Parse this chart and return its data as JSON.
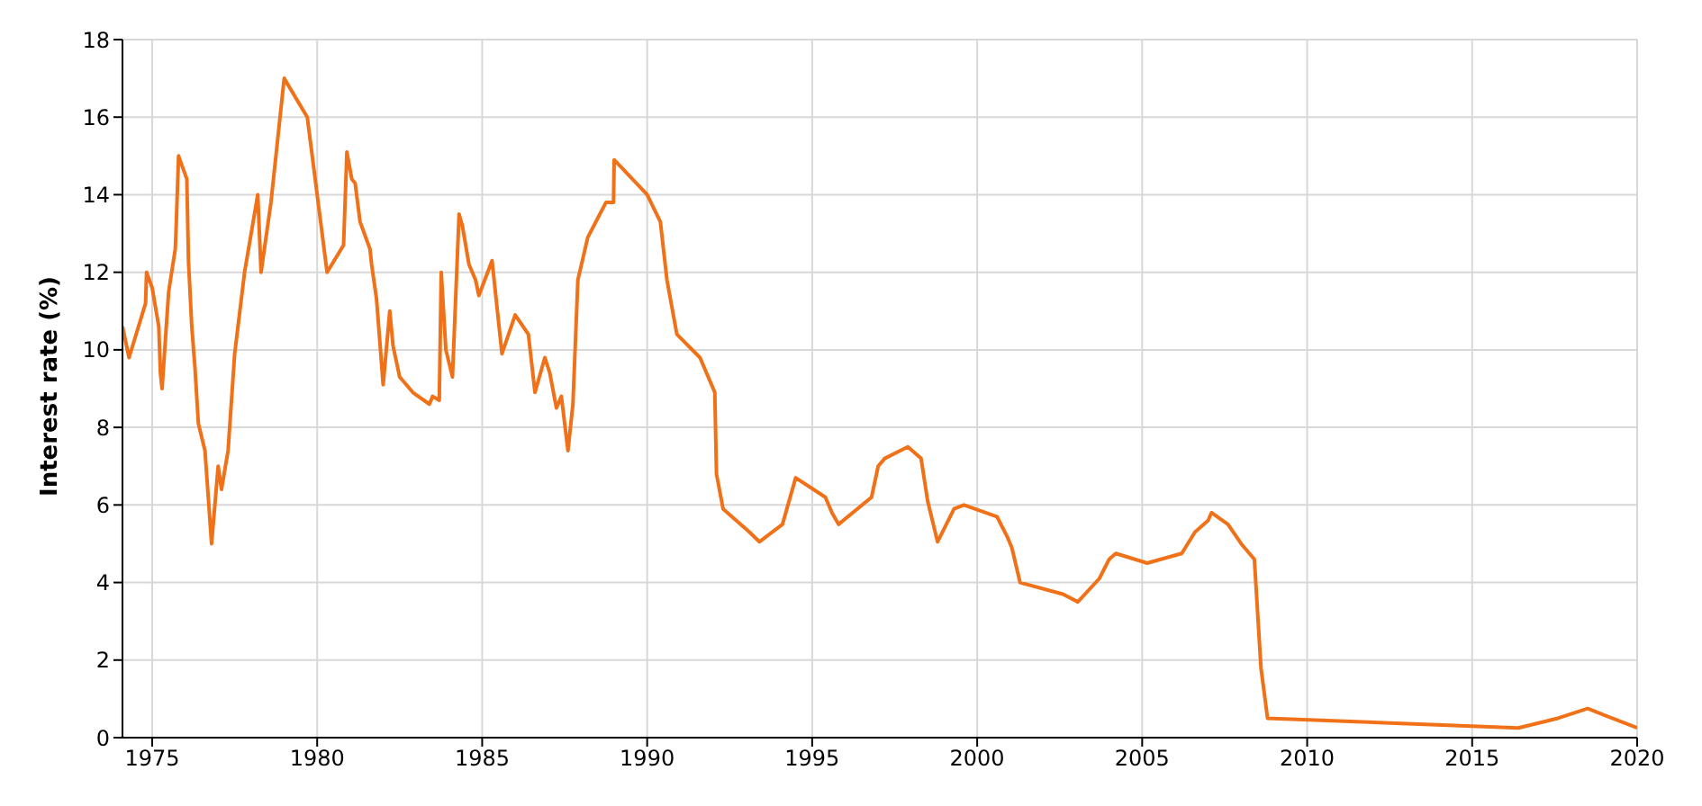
{
  "chart_data": {
    "type": "line",
    "ylabel": "Interest rate (%)",
    "x": [
      1974.1,
      1974.3,
      1974.8,
      1974.83,
      1975,
      1975.2,
      1975.25,
      1975.3,
      1975.5,
      1975.7,
      1975.72,
      1975.8,
      1976.05,
      1976.1,
      1976.2,
      1976.3,
      1976.4,
      1976.6,
      1976.8,
      1977.0,
      1977.1,
      1977.3,
      1977.5,
      1977.8,
      1978.2,
      1978.3,
      1978.6,
      1979.0,
      1979.7,
      1980.3,
      1980.8,
      1980.9,
      1981.05,
      1981.15,
      1981.3,
      1981.6,
      1981.65,
      1981.8,
      1982.0,
      1982.2,
      1982.3,
      1982.5,
      1982.9,
      1983.4,
      1983.5,
      1983.7,
      1983.76,
      1983.9,
      1984.1,
      1984.3,
      1984.4,
      1984.6,
      1984.8,
      1984.9,
      1985.3,
      1985.6,
      1986.0,
      1986.4,
      1986.6,
      1986.9,
      1987.05,
      1987.25,
      1987.4,
      1987.6,
      1987.75,
      1987.9,
      1988.2,
      1988.75,
      1988.98,
      1989.0,
      1990.0,
      1990.4,
      1990.6,
      1990.9,
      1991.6,
      1992.05,
      1992.1,
      1992.3,
      1993.1,
      1993.4,
      1994.1,
      1994.5,
      1995.4,
      1995.6,
      1995.8,
      1996.8,
      1997.0,
      1997.2,
      1997.9,
      1998.3,
      1998.5,
      1998.8,
      1999.3,
      1999.6,
      2000.6,
      2000.9,
      2001.05,
      2001.3,
      2002.6,
      2003.05,
      2003.7,
      2004.0,
      2004.2,
      2005.15,
      2006.2,
      2006.6,
      2007.0,
      2007.1,
      2007.6,
      2008.0,
      2008.4,
      2008.6,
      2008.8,
      2016.4,
      2017.6,
      2018.5,
      2020.0
    ],
    "series": [
      {
        "color": "#f07117",
        "values": [
          10.6,
          9.8,
          11.2,
          12,
          11.6,
          10.6,
          9.4,
          9.0,
          11.5,
          12.6,
          13,
          15,
          14.4,
          12.3,
          10.6,
          9.5,
          8.1,
          7.4,
          5.0,
          7.0,
          6.4,
          7.4,
          9.9,
          12,
          14,
          12,
          13.8,
          17,
          16,
          12,
          12.7,
          15.1,
          14.4,
          14.3,
          13.3,
          12.6,
          12.2,
          11.3,
          9.1,
          11.0,
          10.1,
          9.3,
          8.9,
          8.6,
          8.8,
          8.7,
          12,
          10,
          9.3,
          13.5,
          13.2,
          12.2,
          11.8,
          11.4,
          12.3,
          9.9,
          10.9,
          10.4,
          8.9,
          9.8,
          9.4,
          8.5,
          8.8,
          7.4,
          8.6,
          11.8,
          12.9,
          13.8,
          13.8,
          14.9,
          14,
          13.3,
          11.8,
          10.4,
          9.8,
          8.9,
          6.8,
          5.9,
          5.3,
          5.05,
          5.5,
          6.7,
          6.2,
          5.8,
          5.5,
          6.2,
          7.0,
          7.2,
          7.5,
          7.2,
          6.1,
          5.05,
          5.9,
          6.0,
          5.7,
          5.2,
          4.9,
          4.0,
          3.7,
          3.5,
          4.1,
          4.6,
          4.75,
          4.5,
          4.75,
          5.3,
          5.6,
          5.8,
          5.5,
          5.0,
          4.6,
          1.8,
          0.5,
          0.25,
          0.5,
          0.75,
          0.25
        ]
      }
    ],
    "xlim": [
      1974.1,
      2020
    ],
    "xticks": [
      1975,
      1980,
      1985,
      1990,
      1995,
      2000,
      2005,
      2010,
      2015,
      2020
    ],
    "ylim": [
      0,
      18
    ],
    "yticks": [
      0,
      2,
      4,
      6,
      8,
      10,
      12,
      14,
      16,
      18
    ],
    "grid": true,
    "legend": false,
    "marker": "none",
    "line_style": "solid"
  }
}
